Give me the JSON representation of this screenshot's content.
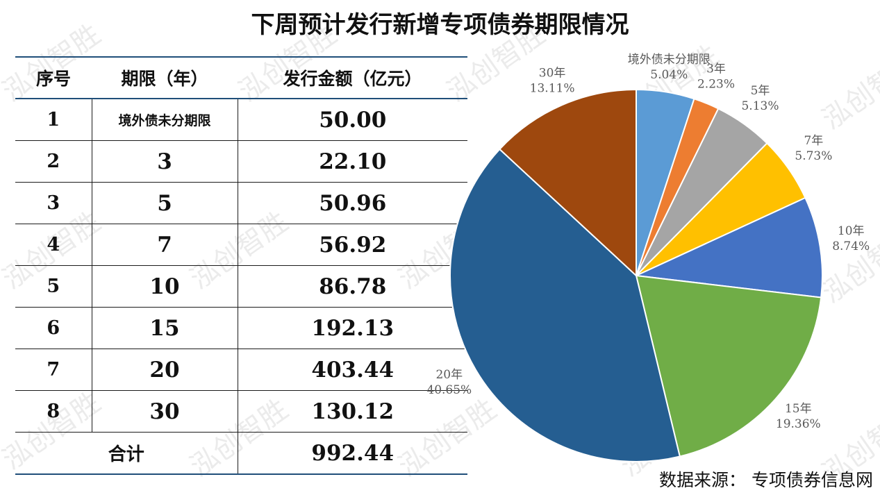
{
  "title": "下周预计发行新增专项债券期限情况",
  "watermark": "泓创智胜",
  "source": "数据来源：  专项债券信息网",
  "table": {
    "headers": [
      "序号",
      "期限（年）",
      "发行金额（亿元）"
    ],
    "rows": [
      {
        "no": "1",
        "term": "境外债未分期限",
        "amount": "50.00"
      },
      {
        "no": "2",
        "term": "3",
        "amount": "22.10"
      },
      {
        "no": "3",
        "term": "5",
        "amount": "50.96"
      },
      {
        "no": "4",
        "term": "7",
        "amount": "56.92"
      },
      {
        "no": "5",
        "term": "10",
        "amount": "86.78"
      },
      {
        "no": "6",
        "term": "15",
        "amount": "192.13"
      },
      {
        "no": "7",
        "term": "20",
        "amount": "403.44"
      },
      {
        "no": "8",
        "term": "30",
        "amount": "130.12"
      }
    ],
    "total_label": "合计",
    "total_amount": "992.44"
  },
  "chart_data": {
    "type": "pie",
    "categories": [
      "境外债未分期限",
      "3年",
      "5年",
      "7年",
      "10年",
      "15年",
      "20年",
      "30年"
    ],
    "values": [
      5.04,
      2.23,
      5.13,
      5.73,
      8.74,
      19.36,
      40.65,
      13.11
    ],
    "labels": [
      "5.04%",
      "2.23%",
      "5.13%",
      "5.73%",
      "8.74%",
      "19.36%",
      "40.65%",
      "13.11%"
    ],
    "colors": [
      "#5b9bd5",
      "#ed7d31",
      "#a5a5a5",
      "#ffc000",
      "#4472c4",
      "#70ad47",
      "#255e91",
      "#9e480e"
    ],
    "start_angle": "12 o'clock",
    "direction": "clockwise"
  }
}
